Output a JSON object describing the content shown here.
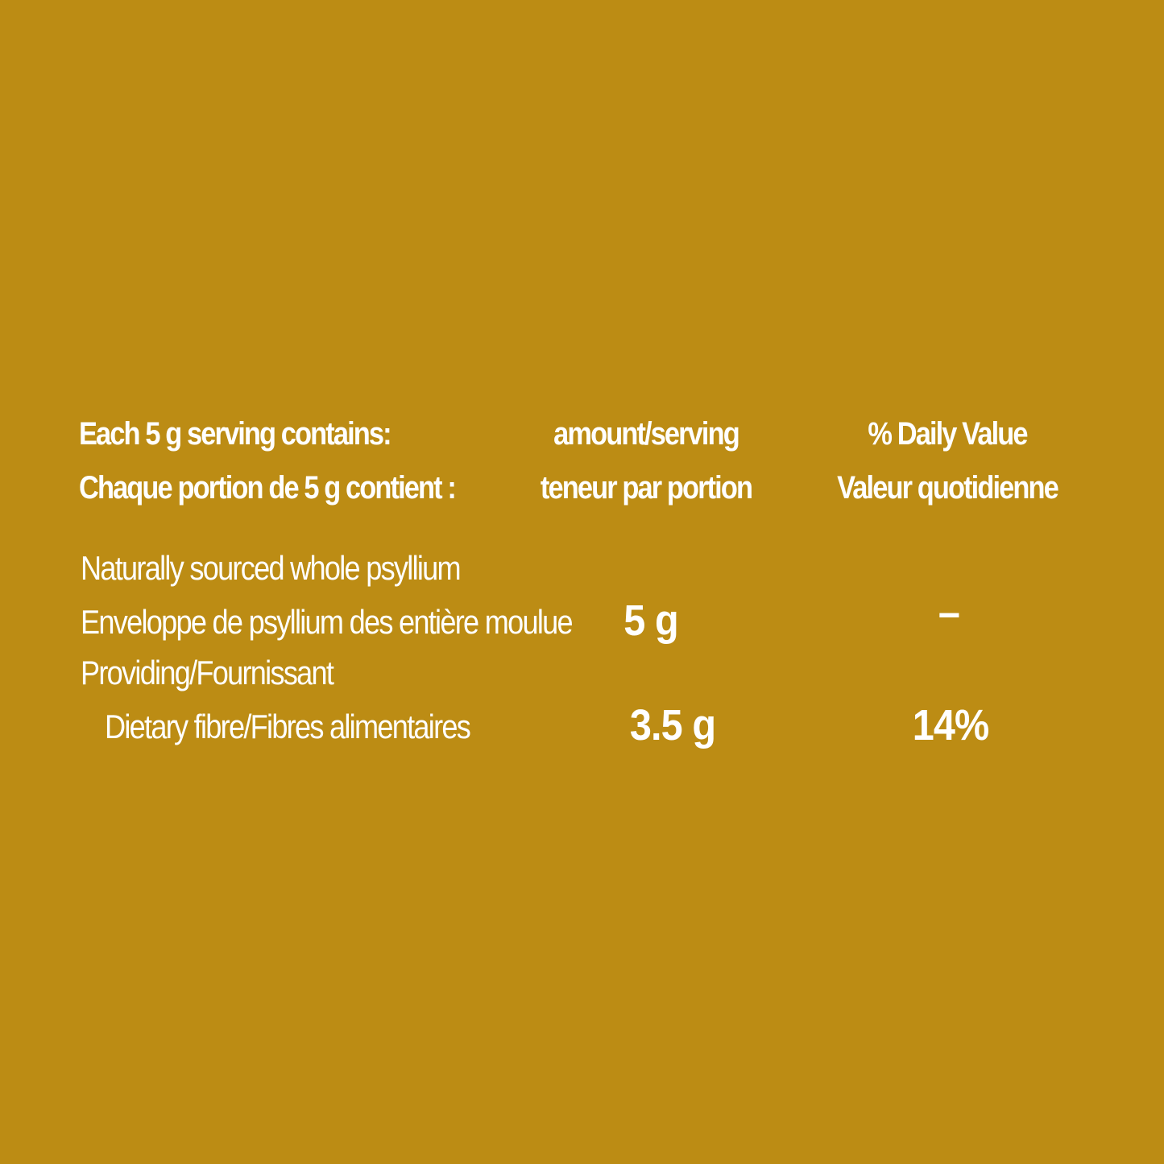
{
  "background_color": "#BC8C14",
  "text_color": "#FFFFFF",
  "header": {
    "serving_en": "Each 5 g serving contains:",
    "serving_fr": "Chaque portion de 5 g contient :",
    "amount_en": "amount/serving",
    "amount_fr": "teneur par portion",
    "dv_en": "% Daily Value",
    "dv_fr": "Valeur quotidienne"
  },
  "rows": [
    {
      "label_en": "Naturally sourced whole psyllium",
      "label_fr": "Enveloppe de psyllium des entière moulue",
      "amount": "5 g",
      "daily_value": "–"
    },
    {
      "label_intro": "Providing/Fournissant",
      "label": "Dietary fibre/Fibres alimentaires",
      "amount": "3.5 g",
      "daily_value": "14%"
    }
  ]
}
